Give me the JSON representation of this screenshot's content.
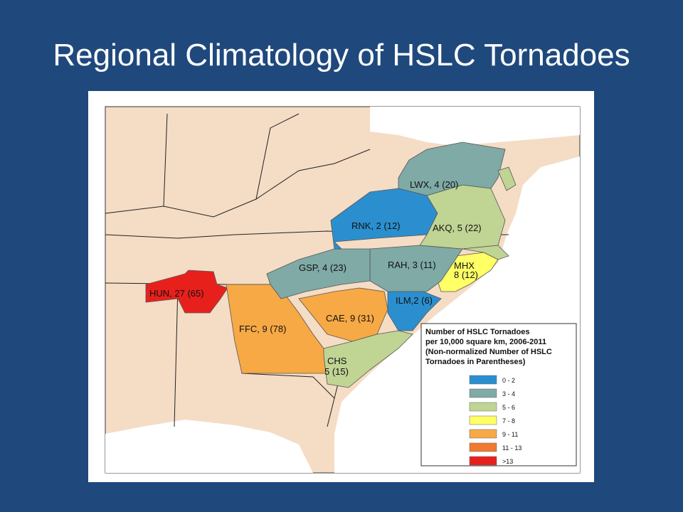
{
  "title": "Regional Climatology of HSLC Tornadoes",
  "regions": [
    {
      "label": "HUN, 27 (65)"
    },
    {
      "label": "FFC, 9 (78)"
    },
    {
      "label": "CAE, 9 (31)"
    },
    {
      "label": "CHS",
      "label2": "5 (15)"
    },
    {
      "label": "ILM,2 (6)"
    },
    {
      "label": "MHX",
      "label2": "8 (12)"
    },
    {
      "label": "RAH, 3 (11)"
    },
    {
      "label": "GSP, 4 (23)"
    },
    {
      "label": "RNK, 2 (12)"
    },
    {
      "label": "AKQ, 5 (22)"
    },
    {
      "label": "LWX, 4 (20)"
    }
  ],
  "legend": {
    "title": [
      "Number of HSLC Tornadoes",
      "per 10,000 square km, 2006-2011",
      "(Non-normalized Number of HSLC",
      "Tornadoes in Parentheses)"
    ],
    "items": [
      {
        "label": "0 - 2",
        "color": "#2b8fcf"
      },
      {
        "label": "3 - 4",
        "color": "#7faaa6"
      },
      {
        "label": "5 - 6",
        "color": "#c0d494"
      },
      {
        "label": "7 - 8",
        "color": "#ffff66"
      },
      {
        "label": "9 - 11",
        "color": "#f7a945"
      },
      {
        "label": "11 - 13",
        "color": "#f07a30"
      },
      {
        "label": ">13",
        "color": "#e8201c"
      }
    ]
  }
}
